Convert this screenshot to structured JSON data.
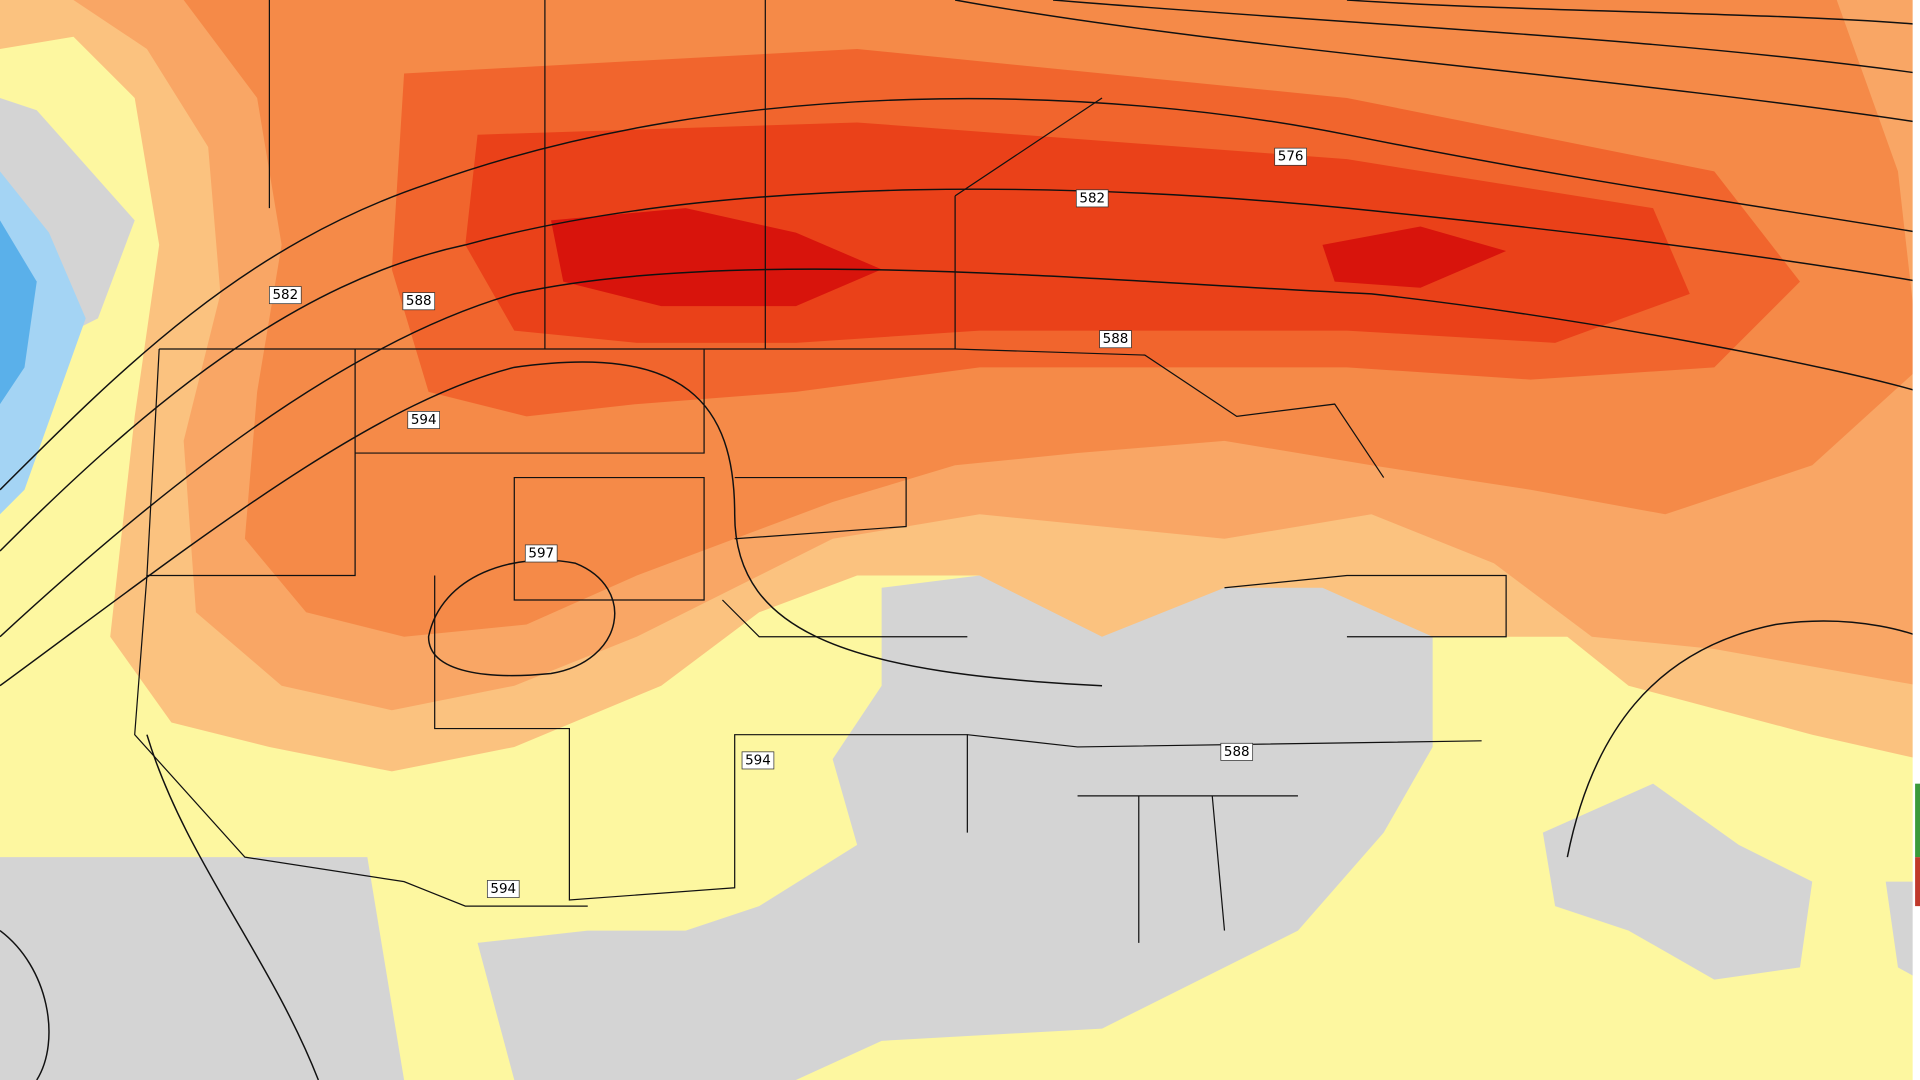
{
  "contour_labels": [
    "576",
    "582",
    "582",
    "588",
    "588",
    "594",
    "597",
    "594",
    "588",
    "594"
  ]
}
